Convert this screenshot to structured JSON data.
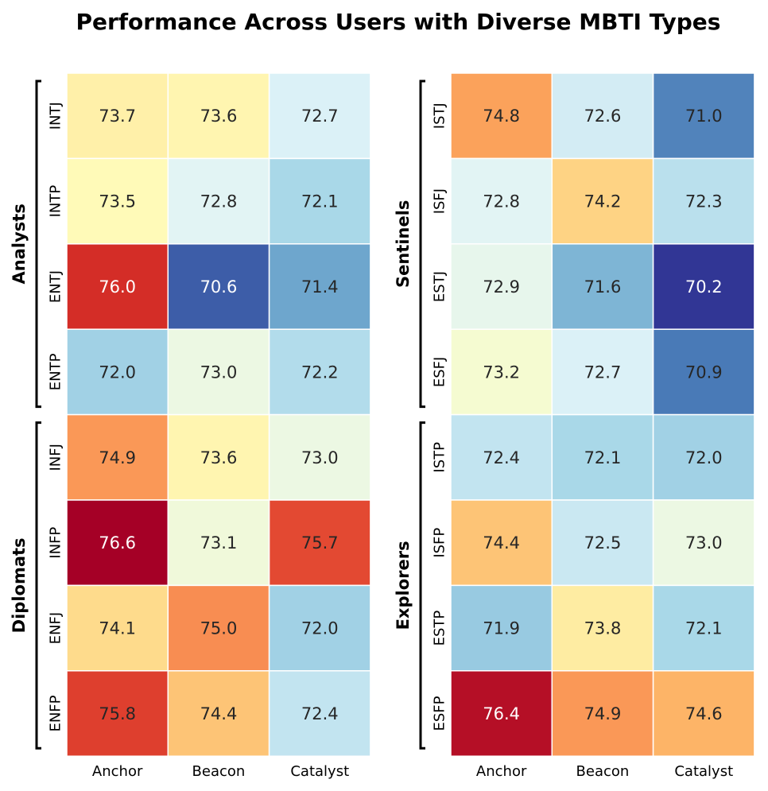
{
  "chart_data": {
    "type": "heatmap",
    "title": "Performance Across Users with Diverse MBTI Types",
    "categories": [
      "Anchor",
      "Beacon",
      "Catalyst"
    ],
    "value_range": [
      70.2,
      76.6
    ],
    "colormap": "RdYlBu_r",
    "panels": [
      {
        "groups": [
          {
            "name": "Analysts",
            "rows": [
              {
                "label": "INTJ",
                "values": [
                  73.7,
                  73.6,
                  72.7
                ]
              },
              {
                "label": "INTP",
                "values": [
                  73.5,
                  72.8,
                  72.1
                ]
              },
              {
                "label": "ENTJ",
                "values": [
                  76.0,
                  70.6,
                  71.4
                ]
              },
              {
                "label": "ENTP",
                "values": [
                  72.0,
                  73.0,
                  72.2
                ]
              }
            ]
          },
          {
            "name": "Diplomats",
            "rows": [
              {
                "label": "INFJ",
                "values": [
                  74.9,
                  73.6,
                  73.0
                ]
              },
              {
                "label": "INFP",
                "values": [
                  76.6,
                  73.1,
                  75.7
                ]
              },
              {
                "label": "ENFJ",
                "values": [
                  74.1,
                  75.0,
                  72.0
                ]
              },
              {
                "label": "ENFP",
                "values": [
                  75.8,
                  74.4,
                  72.4
                ]
              }
            ]
          }
        ]
      },
      {
        "groups": [
          {
            "name": "Sentinels",
            "rows": [
              {
                "label": "ISTJ",
                "values": [
                  74.8,
                  72.6,
                  71.0
                ]
              },
              {
                "label": "ISFJ",
                "values": [
                  72.8,
                  74.2,
                  72.3
                ]
              },
              {
                "label": "ESTJ",
                "values": [
                  72.9,
                  71.6,
                  70.2
                ]
              },
              {
                "label": "ESFJ",
                "values": [
                  73.2,
                  72.7,
                  70.9
                ]
              }
            ]
          },
          {
            "name": "Explorers",
            "rows": [
              {
                "label": "ISTP",
                "values": [
                  72.4,
                  72.1,
                  72.0
                ]
              },
              {
                "label": "ISFP",
                "values": [
                  74.4,
                  72.5,
                  73.0
                ]
              },
              {
                "label": "ESTP",
                "values": [
                  71.9,
                  73.8,
                  72.1
                ]
              },
              {
                "label": "ESFP",
                "values": [
                  76.4,
                  74.9,
                  74.6
                ]
              }
            ]
          }
        ]
      }
    ],
    "colors": {
      "scale": [
        "#313695",
        "#4575b4",
        "#74add1",
        "#abd9e9",
        "#e0f3f8",
        "#ffffbf",
        "#fee090",
        "#fdae61",
        "#f46d43",
        "#d73027",
        "#a50026"
      ],
      "cell_border": "#ffffff",
      "light_text": "#ffffff",
      "dark_text": "#262626"
    }
  }
}
